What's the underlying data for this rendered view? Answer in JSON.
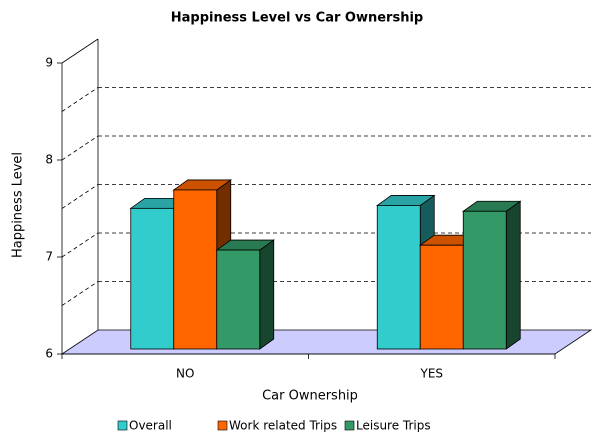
{
  "chart_data": {
    "type": "bar3d",
    "title": "Happiness Level vs Car Ownership",
    "x_label": "Car Ownership",
    "y_label": "Happiness Level",
    "categories": [
      "NO",
      "YES"
    ],
    "series": [
      {
        "name": "Overall",
        "color": "#33CCCC",
        "values": [
          7.45,
          7.48
        ]
      },
      {
        "name": "Work related Trips",
        "color": "#FF6600",
        "values": [
          7.64,
          7.07
        ]
      },
      {
        "name": "Leisure Trips",
        "color": "#339966",
        "values": [
          7.02,
          7.42
        ]
      }
    ],
    "ylim": [
      6,
      9
    ],
    "yticks": [
      6,
      7,
      8,
      9
    ],
    "minor_yticks": [
      6.5,
      7.5,
      8.5
    ],
    "grid": true,
    "floor_color": "#CCCCFF",
    "legend": "bottom"
  }
}
